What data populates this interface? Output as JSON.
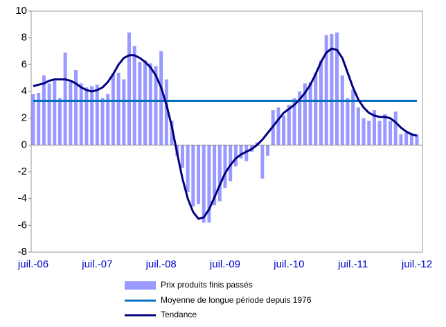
{
  "chart_data": {
    "type": "bar",
    "categories": [
      "juil.-06",
      null,
      null,
      null,
      null,
      null,
      null,
      null,
      null,
      null,
      null,
      null,
      "juil.-07",
      null,
      null,
      null,
      null,
      null,
      null,
      null,
      null,
      null,
      null,
      null,
      "juil.-08",
      null,
      null,
      null,
      null,
      null,
      null,
      null,
      null,
      null,
      null,
      null,
      "juil.-09",
      null,
      null,
      null,
      null,
      null,
      null,
      null,
      null,
      null,
      null,
      null,
      "juil.-10",
      null,
      null,
      null,
      null,
      null,
      null,
      null,
      null,
      null,
      null,
      null,
      "juil.-11",
      null,
      null,
      null,
      null,
      null,
      null,
      null,
      null,
      null,
      null,
      null,
      "juil.-12"
    ],
    "series": [
      {
        "name": "Prix produits finis passés",
        "type": "bar",
        "color": "#9999ff",
        "values": [
          3.8,
          3.9,
          5.2,
          4.6,
          4.8,
          3.5,
          6.9,
          4.7,
          5.6,
          4.6,
          4.3,
          4.4,
          4.5,
          3.5,
          3.8,
          5.3,
          5.4,
          4.9,
          8.4,
          7.4,
          6.2,
          6.3,
          6.1,
          5.9,
          7.0,
          4.9,
          1.8,
          -0.8,
          -1.7,
          -3.5,
          -4.6,
          -4.4,
          -5.8,
          -5.8,
          -4.5,
          -4.2,
          -3.2,
          -2.7,
          -1.6,
          -1.0,
          -1.2,
          -0.5,
          0.2,
          -2.5,
          -0.8,
          2.6,
          2.8,
          2.2,
          3.0,
          3.5,
          4.0,
          4.6,
          4.7,
          5.4,
          6.3,
          8.2,
          8.3,
          8.4,
          5.2,
          3.5,
          4.1,
          2.8,
          2.0,
          1.8,
          2.6,
          1.8,
          2.3,
          1.8,
          2.5,
          0.8,
          0.9,
          0.8,
          0.8
        ]
      },
      {
        "name": "Moyenne de longue période depuis 1976",
        "type": "line",
        "color": "#0070c0",
        "values": [
          3.3,
          3.3,
          3.3,
          3.3,
          3.3,
          3.3,
          3.3,
          3.3,
          3.3,
          3.3,
          3.3,
          3.3,
          3.3,
          3.3,
          3.3,
          3.3,
          3.3,
          3.3,
          3.3,
          3.3,
          3.3,
          3.3,
          3.3,
          3.3,
          3.3,
          3.3,
          3.3,
          3.3,
          3.3,
          3.3,
          3.3,
          3.3,
          3.3,
          3.3,
          3.3,
          3.3,
          3.3,
          3.3,
          3.3,
          3.3,
          3.3,
          3.3,
          3.3,
          3.3,
          3.3,
          3.3,
          3.3,
          3.3,
          3.3,
          3.3,
          3.3,
          3.3,
          3.3,
          3.3,
          3.3,
          3.3,
          3.3,
          3.3,
          3.3,
          3.3,
          3.3,
          3.3,
          3.3,
          3.3,
          3.3,
          3.3,
          3.3,
          3.3,
          3.3,
          3.3,
          3.3,
          3.3,
          3.3
        ]
      },
      {
        "name": "Tendance",
        "type": "line",
        "color": "#000080",
        "values": [
          4.4,
          4.5,
          4.6,
          4.8,
          4.9,
          4.9,
          4.9,
          4.8,
          4.6,
          4.3,
          4.1,
          4.0,
          4.1,
          4.3,
          4.7,
          5.3,
          6.0,
          6.5,
          6.7,
          6.7,
          6.5,
          6.2,
          5.8,
          5.2,
          4.3,
          3.0,
          1.4,
          -0.6,
          -2.5,
          -4.0,
          -5.0,
          -5.5,
          -5.4,
          -4.8,
          -3.9,
          -3.0,
          -2.1,
          -1.5,
          -1.0,
          -0.7,
          -0.5,
          -0.3,
          0.0,
          0.4,
          0.9,
          1.4,
          1.9,
          2.4,
          2.7,
          3.0,
          3.4,
          3.9,
          4.5,
          5.3,
          6.2,
          6.9,
          7.2,
          7.1,
          6.5,
          5.4,
          4.3,
          3.4,
          2.8,
          2.4,
          2.2,
          2.1,
          2.1,
          2.0,
          1.7,
          1.3,
          1.0,
          0.8,
          0.7
        ]
      }
    ],
    "ylim": [
      -8,
      10
    ],
    "yticks": [
      -8,
      -6,
      -4,
      -2,
      0,
      2,
      4,
      6,
      8,
      10
    ],
    "grid": false,
    "legend": "bottom"
  }
}
